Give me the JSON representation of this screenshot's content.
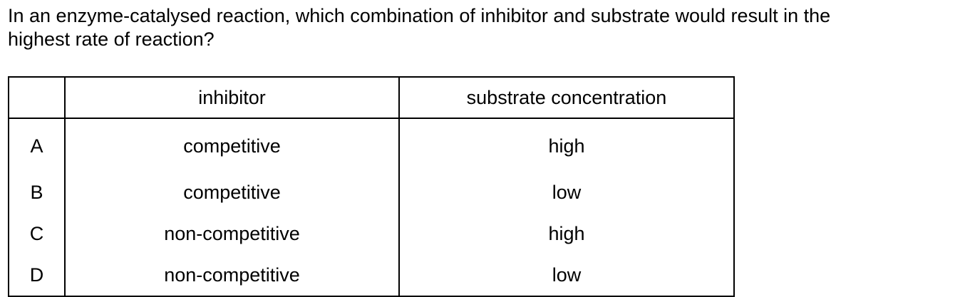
{
  "question": {
    "line1": "In an enzyme-catalysed reaction, which combination of inhibitor and substrate would result in the",
    "line2": "highest rate of reaction?"
  },
  "table": {
    "headers": [
      "",
      "inhibitor",
      "substrate concentration"
    ],
    "rows": [
      {
        "option": "A",
        "inhibitor": "competitive",
        "substrate": "high"
      },
      {
        "option": "B",
        "inhibitor": "competitive",
        "substrate": "low"
      },
      {
        "option": "C",
        "inhibitor": "non-competitive",
        "substrate": "high"
      },
      {
        "option": "D",
        "inhibitor": "non-competitive",
        "substrate": "low"
      }
    ]
  }
}
